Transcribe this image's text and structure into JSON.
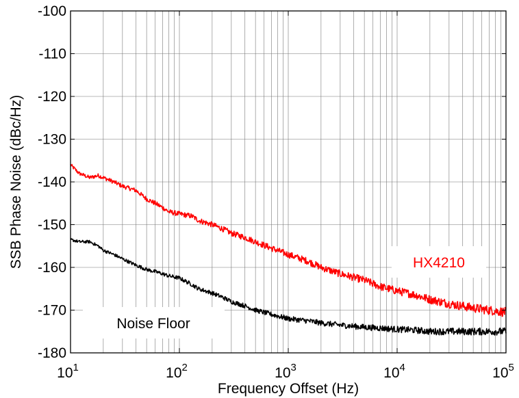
{
  "chart_data": {
    "type": "line",
    "title": "",
    "xlabel": "Frequency Offset (Hz)",
    "ylabel": "SSB Phase Noise (dBc/Hz)",
    "xscale": "log",
    "xlim": [
      10,
      100000
    ],
    "ylim": [
      -180,
      -100
    ],
    "grid": true,
    "x_ticks": [
      {
        "value": 10,
        "base": "10",
        "exp": "1"
      },
      {
        "value": 100,
        "base": "10",
        "exp": "2"
      },
      {
        "value": 1000,
        "base": "10",
        "exp": "3"
      },
      {
        "value": 10000,
        "base": "10",
        "exp": "4"
      },
      {
        "value": 100000,
        "base": "10",
        "exp": "5"
      }
    ],
    "y_ticks": [
      {
        "value": -100,
        "label": "-100"
      },
      {
        "value": -110,
        "label": "-110"
      },
      {
        "value": -120,
        "label": "-120"
      },
      {
        "value": -130,
        "label": "-130"
      },
      {
        "value": -140,
        "label": "-140"
      },
      {
        "value": -150,
        "label": "-150"
      },
      {
        "value": -160,
        "label": "-160"
      },
      {
        "value": -170,
        "label": "-170"
      },
      {
        "value": -180,
        "label": "-180"
      }
    ],
    "series": [
      {
        "label": "HX4210",
        "color": "#ff0000",
        "x": [
          10,
          12,
          15,
          18,
          20,
          25,
          30,
          40,
          50,
          60,
          70,
          80,
          100,
          130,
          150,
          200,
          250,
          300,
          400,
          500,
          700,
          1000,
          1500,
          2000,
          3000,
          5000,
          7000,
          10000,
          15000,
          20000,
          30000,
          50000,
          70000,
          100000
        ],
        "values": [
          -136,
          -138,
          -139,
          -138.5,
          -139,
          -140,
          -141,
          -142,
          -144,
          -145,
          -146,
          -147,
          -147.5,
          -148,
          -149,
          -150,
          -151,
          -152,
          -153,
          -154,
          -155.5,
          -157,
          -158.5,
          -160,
          -161.5,
          -163,
          -164.5,
          -165.5,
          -166.5,
          -167.5,
          -168.5,
          -169.5,
          -170,
          -170.5
        ]
      },
      {
        "label": "Noise Floor",
        "color": "#000000",
        "x": [
          10,
          12,
          15,
          18,
          20,
          25,
          30,
          40,
          50,
          60,
          70,
          80,
          100,
          130,
          150,
          200,
          250,
          300,
          400,
          500,
          700,
          1000,
          1500,
          2000,
          3000,
          5000,
          7000,
          10000,
          15000,
          20000,
          30000,
          50000,
          70000,
          100000
        ],
        "values": [
          -153.5,
          -154,
          -154,
          -155,
          -156,
          -157,
          -158,
          -159.5,
          -160.5,
          -161,
          -161.5,
          -162,
          -162.5,
          -164,
          -165,
          -166,
          -167,
          -168,
          -169,
          -170,
          -171,
          -172,
          -172.5,
          -173,
          -173.5,
          -174,
          -174.2,
          -174.5,
          -174.7,
          -175,
          -175,
          -175,
          -175,
          -175
        ]
      }
    ],
    "annotations": [
      {
        "text": "HX4210",
        "color": "#ff0000"
      },
      {
        "text": "Noise Floor",
        "color": "#000000"
      }
    ]
  }
}
